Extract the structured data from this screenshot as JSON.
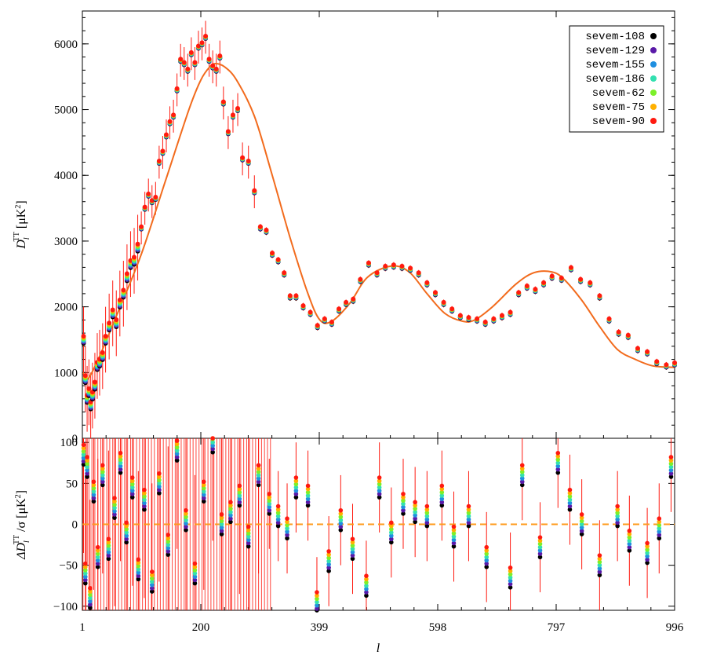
{
  "chart_data": [
    {
      "type": "scatter",
      "panel": "top",
      "xlabel": "l",
      "ylabel": "D_l^TT [μK²]",
      "ylabel_parts": {
        "main": "D",
        "sub": "l",
        "sup": "TT",
        "unit": "[μK",
        "unit_sup": "2",
        "close": "]"
      },
      "xlim": [
        1,
        996
      ],
      "ylim": [
        0,
        6500
      ],
      "xticks": [
        1,
        200,
        399,
        598,
        797,
        996
      ],
      "xtick_labels": [
        "1",
        "200",
        "399",
        "598",
        "797",
        "996"
      ],
      "yticks": [
        0,
        1000,
        2000,
        3000,
        4000,
        5000,
        6000
      ],
      "ytick_labels": [
        "0",
        "1000",
        "2000",
        "3000",
        "4000",
        "5000",
        "6000"
      ],
      "legend_position": "top-right",
      "series": [
        {
          "name": "sevem-108",
          "color": "#000000"
        },
        {
          "name": "sevem-129",
          "color": "#5a1aa8"
        },
        {
          "name": "sevem-155",
          "color": "#1f8fe0"
        },
        {
          "name": "sevem-186",
          "color": "#33e0b0"
        },
        {
          "name": "sevem-62",
          "color": "#7cf02a"
        },
        {
          "name": "sevem-75",
          "color": "#ffb000"
        },
        {
          "name": "sevem-90",
          "color": "#ff1a10"
        }
      ],
      "model_curve": {
        "color": "#f26b1d",
        "x": [
          2,
          10,
          30,
          60,
          100,
          140,
          180,
          200,
          215,
          225,
          240,
          260,
          290,
          320,
          350,
          380,
          400,
          420,
          450,
          480,
          520,
          550,
          580,
          610,
          640,
          660,
          690,
          730,
          760,
          790,
          810,
          840,
          870,
          900,
          930,
          960,
          996
        ],
        "y": [
          1000,
          900,
          1250,
          1900,
          2800,
          3900,
          5000,
          5450,
          5650,
          5700,
          5650,
          5450,
          4900,
          4000,
          3050,
          2200,
          1800,
          1780,
          2050,
          2450,
          2620,
          2530,
          2200,
          1900,
          1780,
          1800,
          2000,
          2350,
          2520,
          2530,
          2420,
          2100,
          1700,
          1350,
          1200,
          1100,
          1080
        ]
      },
      "points": {
        "x": [
          3,
          6,
          9,
          12,
          15,
          18,
          22,
          26,
          30,
          35,
          40,
          46,
          52,
          58,
          64,
          70,
          76,
          82,
          88,
          94,
          100,
          106,
          112,
          118,
          124,
          130,
          136,
          142,
          148,
          154,
          160,
          166,
          172,
          178,
          184,
          190,
          196,
          202,
          208,
          214,
          220,
          226,
          232,
          238,
          246,
          254,
          262,
          270,
          280,
          290,
          300,
          310,
          320,
          330,
          340,
          350,
          360,
          372,
          384,
          396,
          408,
          420,
          432,
          444,
          456,
          468,
          482,
          496,
          510,
          524,
          538,
          552,
          566,
          580,
          594,
          608,
          622,
          636,
          650,
          664,
          678,
          692,
          706,
          720,
          734,
          748,
          762,
          776,
          790,
          806,
          822,
          838,
          854,
          870,
          886,
          902,
          918,
          934,
          950,
          966,
          982,
          996
        ],
        "y": [
          1500,
          900,
          600,
          700,
          500,
          650,
          800,
          1100,
          1150,
          1250,
          1500,
          1700,
          1900,
          1750,
          2050,
          2200,
          2450,
          2650,
          2700,
          2900,
          3200,
          3500,
          3700,
          3600,
          3650,
          4200,
          4350,
          4600,
          4800,
          4900,
          5300,
          5750,
          5700,
          5600,
          5850,
          5700,
          5950,
          6000,
          6100,
          5750,
          5650,
          5600,
          5800,
          5100,
          4650,
          4900,
          5000,
          4250,
          4200,
          3750,
          3200,
          3150,
          2800,
          2700,
          2500,
          2150,
          2150,
          2000,
          1900,
          1700,
          1800,
          1750,
          1950,
          2050,
          2100,
          2400,
          2650,
          2500,
          2600,
          2620,
          2600,
          2570,
          2500,
          2350,
          2200,
          2050,
          1950,
          1850,
          1820,
          1800,
          1750,
          1800,
          1850,
          1900,
          2200,
          2300,
          2250,
          2350,
          2450,
          2420,
          2580,
          2400,
          2350,
          2150,
          1800,
          1600,
          1550,
          1350,
          1300,
          1150,
          1100,
          1130
        ]
      }
    },
    {
      "type": "scatter",
      "panel": "bottom",
      "xlabel": "l",
      "ylabel": "ΔD_l^TT/σ [μK²]",
      "ylabel_parts": {
        "pre": "ΔD",
        "sub": "l",
        "sup": "TT",
        "mid": "/σ [μK",
        "unit_sup": "2",
        "close": "]"
      },
      "xlim": [
        1,
        996
      ],
      "ylim": [
        -105,
        105
      ],
      "yticks": [
        -100,
        -50,
        0,
        50,
        100
      ],
      "ytick_labels": [
        "−100",
        "−50",
        "0",
        "50",
        "100"
      ],
      "zero_line_color": "#ff9a1a",
      "points": {
        "x": [
          3,
          6,
          9,
          14,
          20,
          27,
          35,
          45,
          55,
          65,
          75,
          85,
          95,
          105,
          118,
          130,
          145,
          160,
          175,
          190,
          205,
          220,
          235,
          250,
          265,
          280,
          297,
          315,
          330,
          345,
          360,
          380,
          395,
          415,
          435,
          455,
          478,
          500,
          520,
          540,
          560,
          580,
          605,
          625,
          650,
          680,
          720,
          740,
          770,
          800,
          820,
          840,
          870,
          900,
          920,
          950,
          970,
          990
        ],
        "y": [
          85,
          -60,
          70,
          -90,
          40,
          -40,
          60,
          -30,
          20,
          75,
          -10,
          45,
          -55,
          30,
          -70,
          50,
          -25,
          90,
          5,
          -60,
          40,
          100,
          0,
          15,
          35,
          -15,
          60,
          25,
          10,
          -5,
          45,
          35,
          -95,
          -45,
          5,
          -30,
          -75,
          45,
          -10,
          25,
          15,
          10,
          35,
          -15,
          10,
          -40,
          -65,
          60,
          -28,
          75,
          30,
          0,
          -50,
          10,
          -20,
          -35,
          -5,
          70
        ]
      }
    }
  ]
}
